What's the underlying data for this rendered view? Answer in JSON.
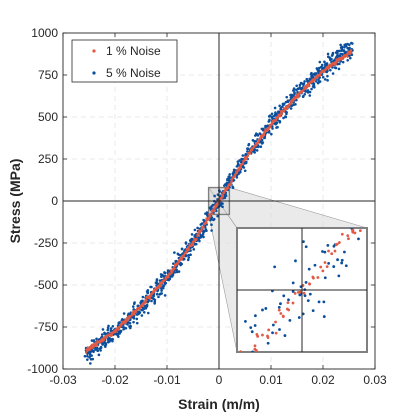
{
  "chart_data": {
    "type": "scatter",
    "xlabel": "Strain (m/m)",
    "ylabel": "Stress (MPa)",
    "xlim": [
      -0.03,
      0.03
    ],
    "ylim": [
      -1000,
      1000
    ],
    "x_ticks": [
      -0.03,
      -0.02,
      -0.01,
      0,
      0.01,
      0.02,
      0.03
    ],
    "x_tick_labels": [
      "-0.03",
      "-0.02",
      "-0.01",
      "0",
      "0.01",
      "0.02",
      "0.03"
    ],
    "y_ticks": [
      -1000,
      -750,
      -500,
      -250,
      0,
      250,
      500,
      750,
      1000
    ],
    "y_tick_labels": [
      "-1000",
      "-750",
      "-500",
      "-250",
      "0",
      "250",
      "500",
      "750",
      "1000"
    ],
    "grid": true,
    "legend_position": "top-left",
    "series": [
      {
        "name": "5 % Noise",
        "color": "#0b4f9c",
        "marker": "dot",
        "noise_fraction": 0.05,
        "x_range": [
          -0.0255,
          0.0255
        ],
        "curve_points": [
          [
            -0.0255,
            -915
          ],
          [
            -0.02,
            -780
          ],
          [
            -0.015,
            -630
          ],
          [
            -0.01,
            -460
          ],
          [
            -0.005,
            -255
          ],
          [
            0,
            0
          ],
          [
            0.005,
            255
          ],
          [
            0.01,
            460
          ],
          [
            0.015,
            630
          ],
          [
            0.02,
            780
          ],
          [
            0.0255,
            915
          ]
        ]
      },
      {
        "name": "1 % Noise",
        "color": "#e05a45",
        "marker": "dot",
        "noise_fraction": 0.01,
        "x_range": [
          -0.0255,
          0.0255
        ],
        "curve_points": [
          [
            -0.0255,
            -890
          ],
          [
            -0.02,
            -775
          ],
          [
            -0.015,
            -625
          ],
          [
            -0.01,
            -455
          ],
          [
            -0.005,
            -250
          ],
          [
            0,
            0
          ],
          [
            0.005,
            250
          ],
          [
            0.01,
            455
          ],
          [
            0.015,
            625
          ],
          [
            0.02,
            775
          ],
          [
            0.0255,
            890
          ]
        ]
      }
    ],
    "inset": {
      "description_level": "zoom",
      "source_xlim": [
        -0.002,
        0.002
      ],
      "source_ylim": [
        -80,
        80
      ],
      "color": "#808080"
    }
  }
}
